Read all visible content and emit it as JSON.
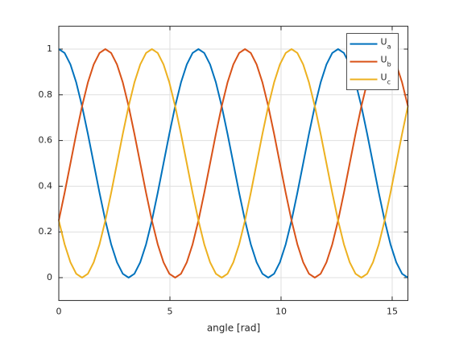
{
  "chart_data": {
    "type": "line",
    "xlabel": "angle [rad]",
    "x": [
      0,
      0.262,
      0.524,
      0.785,
      1.047,
      1.309,
      1.571,
      1.833,
      2.094,
      2.356,
      2.618,
      2.88,
      3.142,
      3.403,
      3.665,
      3.927,
      4.189,
      4.451,
      4.712,
      4.974,
      5.236,
      5.498,
      5.76,
      6.021,
      6.283,
      6.545,
      6.807,
      7.069,
      7.33,
      7.592,
      7.854,
      8.116,
      8.378,
      8.639,
      8.901,
      9.163,
      9.425,
      9.687,
      9.948,
      10.21,
      10.472,
      10.734,
      10.996,
      11.257,
      11.519,
      11.781,
      12.043,
      12.305,
      12.566,
      12.828,
      13.09,
      13.352,
      13.614,
      13.875,
      14.137,
      14.399,
      14.661,
      14.923,
      15.184,
      15.446,
      15.708
    ],
    "series": [
      {
        "name": "U_a",
        "color": "#0072BD",
        "values": [
          1,
          0.983,
          0.933,
          0.854,
          0.75,
          0.629,
          0.5,
          0.371,
          0.25,
          0.146,
          0.067,
          0.017,
          0,
          0.017,
          0.067,
          0.146,
          0.25,
          0.371,
          0.5,
          0.629,
          0.75,
          0.854,
          0.933,
          0.983,
          1,
          0.983,
          0.933,
          0.854,
          0.75,
          0.629,
          0.5,
          0.371,
          0.25,
          0.146,
          0.067,
          0.017,
          0,
          0.017,
          0.067,
          0.146,
          0.25,
          0.371,
          0.5,
          0.629,
          0.75,
          0.854,
          0.933,
          0.983,
          1,
          0.983,
          0.933,
          0.854,
          0.75,
          0.629,
          0.5,
          0.371,
          0.25,
          0.146,
          0.067,
          0.017,
          0
        ]
      },
      {
        "name": "U_b",
        "color": "#D95319",
        "values": [
          0.25,
          0.371,
          0.5,
          0.629,
          0.75,
          0.854,
          0.933,
          0.983,
          1,
          0.983,
          0.933,
          0.854,
          0.75,
          0.629,
          0.5,
          0.371,
          0.25,
          0.146,
          0.067,
          0.017,
          0,
          0.017,
          0.067,
          0.146,
          0.25,
          0.371,
          0.5,
          0.629,
          0.75,
          0.854,
          0.933,
          0.983,
          1,
          0.983,
          0.933,
          0.854,
          0.75,
          0.629,
          0.5,
          0.371,
          0.25,
          0.146,
          0.067,
          0.017,
          0,
          0.017,
          0.067,
          0.146,
          0.25,
          0.371,
          0.5,
          0.629,
          0.75,
          0.854,
          0.933,
          0.983,
          1,
          0.983,
          0.933,
          0.854,
          0.75
        ]
      },
      {
        "name": "U_c",
        "color": "#EDB120",
        "values": [
          0.25,
          0.146,
          0.067,
          0.017,
          0,
          0.017,
          0.067,
          0.146,
          0.25,
          0.371,
          0.5,
          0.629,
          0.75,
          0.854,
          0.933,
          0.983,
          1,
          0.983,
          0.933,
          0.854,
          0.75,
          0.629,
          0.5,
          0.371,
          0.25,
          0.146,
          0.067,
          0.017,
          0,
          0.017,
          0.067,
          0.146,
          0.25,
          0.371,
          0.5,
          0.629,
          0.75,
          0.854,
          0.933,
          0.983,
          1,
          0.983,
          0.933,
          0.854,
          0.75,
          0.629,
          0.5,
          0.371,
          0.25,
          0.146,
          0.067,
          0.017,
          0,
          0.017,
          0.067,
          0.146,
          0.25,
          0.371,
          0.5,
          0.629,
          0.75
        ]
      }
    ],
    "xlim": [
      0,
      15.708
    ],
    "ylim": [
      -0.1,
      1.1
    ],
    "xticks": [
      0,
      5,
      10,
      15
    ],
    "yticks": [
      0,
      0.2,
      0.4,
      0.6,
      0.8,
      1
    ],
    "grid": true,
    "legend": "northeast"
  }
}
